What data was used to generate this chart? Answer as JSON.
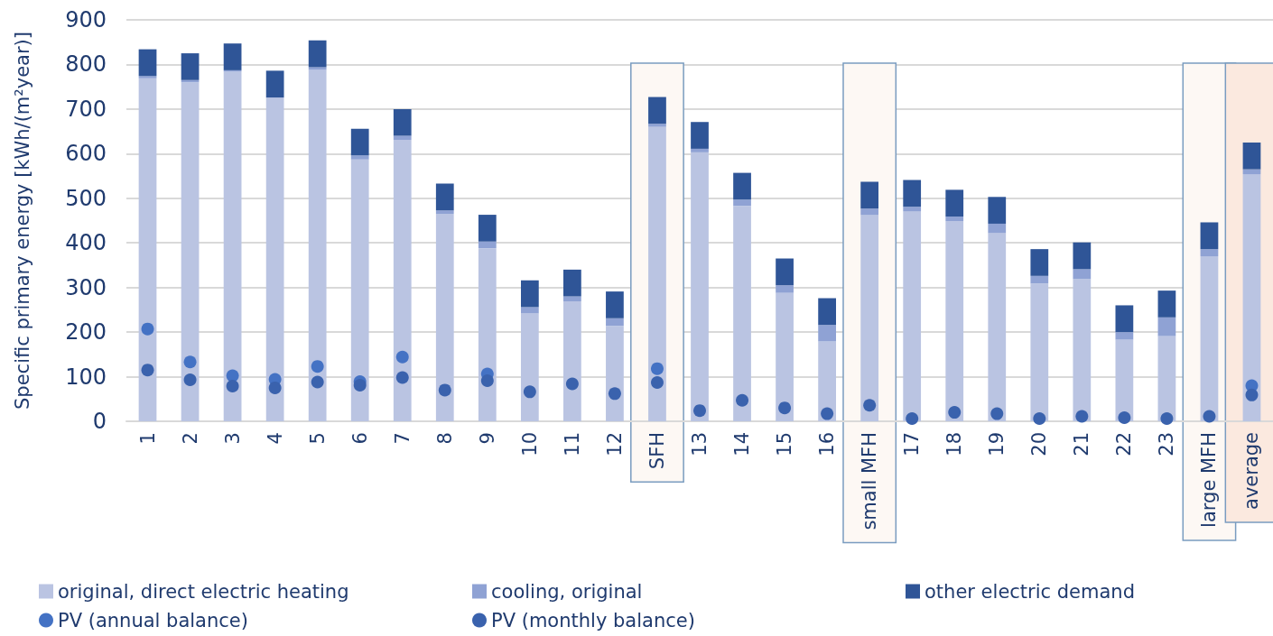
{
  "chart_data": {
    "type": "bar",
    "ylabel": "Specific primary energy [kWh/(m²year)]",
    "categories": [
      "1",
      "2",
      "3",
      "4",
      "5",
      "6",
      "7",
      "8",
      "9",
      "10",
      "11",
      "12",
      "SFH",
      "13",
      "14",
      "15",
      "16",
      "small MFH",
      "17",
      "18",
      "19",
      "20",
      "21",
      "22",
      "23",
      "large MFH",
      "average"
    ],
    "stacked": true,
    "ylim": [
      0,
      900
    ],
    "yticks": [
      0,
      100,
      200,
      300,
      400,
      500,
      600,
      700,
      800,
      900
    ],
    "grid": "y",
    "legend": "bottom",
    "marker": "circle",
    "series": [
      {
        "name": "original, direct electric heating",
        "color": "#bac4e2",
        "values": [
          769,
          760,
          784,
          725,
          788,
          587,
          631,
          465,
          388,
          242,
          269,
          214,
          660,
          603,
          483,
          288,
          179,
          463,
          471,
          449,
          422,
          309,
          319,
          183,
          191,
          370,
          554
        ]
      },
      {
        "name": "cooling, original",
        "color": "#8fa2d4",
        "values": [
          5,
          5,
          3,
          1,
          6,
          9,
          9,
          8,
          15,
          14,
          11,
          17,
          7,
          8,
          14,
          17,
          37,
          14,
          10,
          10,
          21,
          17,
          22,
          17,
          42,
          16,
          11
        ]
      },
      {
        "name": "other electric demand",
        "color": "#2f5597",
        "values": [
          60,
          60,
          60,
          60,
          60,
          60,
          60,
          60,
          60,
          60,
          60,
          60,
          60,
          60,
          60,
          60,
          60,
          60,
          60,
          60,
          60,
          60,
          60,
          60,
          60,
          60,
          60
        ]
      },
      {
        "name": "PV (annual balance)",
        "type": "scatter",
        "color": "#4472c4",
        "x": [
          "1",
          "2",
          "3",
          "4",
          "5",
          "6",
          "7",
          "8",
          "9",
          "10",
          "11",
          "12",
          "SFH",
          "13",
          "14",
          "15",
          "16",
          "small MFH",
          "17",
          "18",
          "19",
          "20",
          "21",
          "22",
          "23",
          "large MFH",
          "average"
        ],
        "values": [
          207,
          133,
          102,
          94,
          123,
          89,
          144,
          null,
          106,
          null,
          null,
          null,
          118,
          null,
          null,
          null,
          null,
          null,
          null,
          null,
          null,
          null,
          null,
          null,
          null,
          null,
          80
        ]
      },
      {
        "name": "PV (monthly balance)",
        "type": "scatter",
        "color": "#3a62ad",
        "x": [
          "1",
          "2",
          "3",
          "4",
          "5",
          "6",
          "7",
          "8",
          "9",
          "10",
          "11",
          "12",
          "SFH",
          "13",
          "14",
          "15",
          "16",
          "small MFH",
          "17",
          "18",
          "19",
          "20",
          "21",
          "22",
          "23",
          "large MFH",
          "average"
        ],
        "values": [
          115,
          93,
          79,
          75,
          88,
          81,
          98,
          70,
          91,
          66,
          84,
          62,
          87,
          24,
          47,
          30,
          17,
          36,
          6,
          20,
          17,
          6,
          11,
          8,
          6,
          11,
          59
        ]
      }
    ],
    "bands": [
      {
        "axis": "x",
        "from": "SFH",
        "to": "SFH",
        "color": "#fdf8f4"
      },
      {
        "axis": "x",
        "from": "small MFH",
        "to": "small MFH",
        "color": "#fdf8f4"
      },
      {
        "axis": "x",
        "from": "large MFH",
        "to": "large MFH",
        "color": "#fdf8f4"
      },
      {
        "axis": "x",
        "from": "average",
        "to": "average",
        "color": "#fbe9df"
      }
    ]
  }
}
